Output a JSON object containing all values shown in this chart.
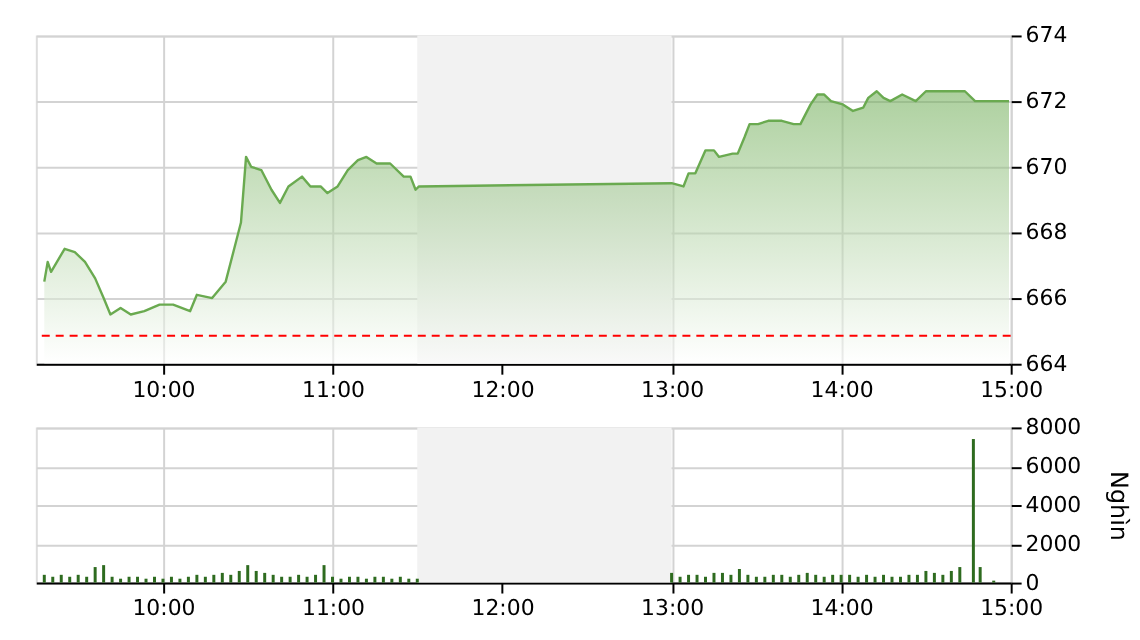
{
  "chart_data": [
    {
      "type": "area",
      "x": [
        9.3,
        9.32,
        9.34,
        9.42,
        9.48,
        9.54,
        9.6,
        9.65,
        9.69,
        9.75,
        9.81,
        9.89,
        9.98,
        10.06,
        10.16,
        10.2,
        10.29,
        10.37,
        10.43,
        10.46,
        10.49,
        10.52,
        10.58,
        10.64,
        10.69,
        10.74,
        10.82,
        10.87,
        10.93,
        10.97,
        11.03,
        11.09,
        11.15,
        11.2,
        11.26,
        11.34,
        11.42,
        11.46,
        11.49,
        11.51,
        13.0,
        13.07,
        13.1,
        13.14,
        13.2,
        13.25,
        13.28,
        13.36,
        13.39,
        13.43,
        13.46,
        13.51,
        13.57,
        13.65,
        13.72,
        13.76,
        13.82,
        13.86,
        13.9,
        13.94,
        14.01,
        14.07,
        14.13,
        14.16,
        14.21,
        14.25,
        14.29,
        14.36,
        14.44,
        14.5,
        14.56,
        14.73,
        14.79,
        14.99
      ],
      "series": [
        {
          "color": "#6aaa50",
          "values": [
            666.5,
            667.1,
            666.8,
            667.5,
            667.4,
            667.1,
            666.6,
            666.0,
            665.5,
            665.7,
            665.5,
            665.6,
            665.8,
            665.8,
            665.6,
            666.1,
            666.0,
            666.5,
            667.7,
            668.3,
            670.3,
            670.0,
            669.9,
            669.3,
            668.9,
            669.4,
            669.7,
            669.4,
            669.4,
            669.2,
            669.4,
            669.9,
            670.2,
            670.3,
            670.1,
            670.1,
            669.7,
            669.7,
            669.3,
            669.4,
            669.5,
            669.4,
            669.8,
            669.8,
            670.5,
            670.5,
            670.3,
            670.4,
            670.4,
            670.9,
            671.3,
            671.3,
            671.4,
            671.4,
            671.3,
            671.3,
            671.9,
            672.2,
            672.2,
            672.0,
            671.9,
            671.7,
            671.8,
            672.1,
            672.3,
            672.1,
            672.0,
            672.2,
            672.0,
            672.3,
            672.3,
            672.3,
            672.0,
            672.0
          ]
        }
      ],
      "xlim": [
        9.25,
        15
      ],
      "xticks": [
        {
          "value": 10,
          "label": "10:00"
        },
        {
          "value": 11,
          "label": "11:00"
        },
        {
          "value": 12,
          "label": "12:00"
        },
        {
          "value": 13,
          "label": "13:00"
        },
        {
          "value": 14,
          "label": "14:00"
        },
        {
          "value": 15,
          "label": "15:00"
        }
      ],
      "ylim": [
        664,
        674
      ],
      "yticks": [
        664,
        666,
        668,
        670,
        672,
        674
      ],
      "grid": true,
      "ref_lines": [
        {
          "axis": "y",
          "value": 664.85,
          "color": "#ff0000",
          "line_style": "dashed"
        }
      ],
      "bands": [
        {
          "axis": "x",
          "from": 11.5,
          "to": 13.0,
          "color": "#f2f2f2"
        }
      ]
    },
    {
      "type": "bar",
      "ylabel": "Nghìn",
      "x": [
        9.3,
        9.35,
        9.4,
        9.45,
        9.5,
        9.55,
        9.6,
        9.65,
        9.7,
        9.75,
        9.8,
        9.85,
        9.9,
        9.95,
        10.0,
        10.05,
        10.1,
        10.15,
        10.2,
        10.25,
        10.3,
        10.35,
        10.4,
        10.45,
        10.5,
        10.55,
        10.6,
        10.65,
        10.7,
        10.75,
        10.8,
        10.85,
        10.9,
        10.95,
        11.0,
        11.05,
        11.1,
        11.15,
        11.2,
        11.25,
        11.3,
        11.35,
        11.4,
        11.45,
        11.5,
        13.0,
        13.05,
        13.1,
        13.15,
        13.2,
        13.25,
        13.3,
        13.35,
        13.4,
        13.45,
        13.5,
        13.55,
        13.6,
        13.65,
        13.7,
        13.75,
        13.8,
        13.85,
        13.9,
        13.95,
        14.0,
        14.05,
        14.1,
        14.15,
        14.2,
        14.25,
        14.3,
        14.35,
        14.4,
        14.45,
        14.5,
        14.55,
        14.6,
        14.65,
        14.7,
        14.78,
        14.82,
        14.9
      ],
      "series": [
        {
          "color": "#2e6b1f",
          "values": [
            400,
            300,
            400,
            300,
            400,
            300,
            800,
            900,
            300,
            200,
            300,
            300,
            200,
            300,
            200,
            300,
            200,
            300,
            400,
            300,
            400,
            500,
            400,
            600,
            900,
            600,
            500,
            400,
            300,
            300,
            400,
            300,
            400,
            900,
            300,
            200,
            300,
            300,
            200,
            300,
            300,
            200,
            300,
            200,
            200,
            500,
            300,
            400,
            400,
            300,
            500,
            500,
            400,
            700,
            400,
            300,
            300,
            400,
            400,
            300,
            400,
            500,
            400,
            300,
            400,
            400,
            400,
            300,
            400,
            300,
            400,
            300,
            300,
            400,
            400,
            600,
            500,
            400,
            600,
            800,
            7400,
            800,
            100
          ]
        }
      ],
      "xlim": [
        9.25,
        15
      ],
      "xticks": [
        {
          "value": 10,
          "label": "10:00"
        },
        {
          "value": 11,
          "label": "11:00"
        },
        {
          "value": 12,
          "label": "12:00"
        },
        {
          "value": 13,
          "label": "13:00"
        },
        {
          "value": 14,
          "label": "14:00"
        },
        {
          "value": 15,
          "label": "15:00"
        }
      ],
      "ylim": [
        0,
        8000
      ],
      "yticks": [
        0,
        2000,
        4000,
        6000,
        8000
      ],
      "grid": true,
      "bands": [
        {
          "axis": "x",
          "from": 11.5,
          "to": 13.0,
          "color": "#f2f2f2"
        }
      ]
    }
  ]
}
